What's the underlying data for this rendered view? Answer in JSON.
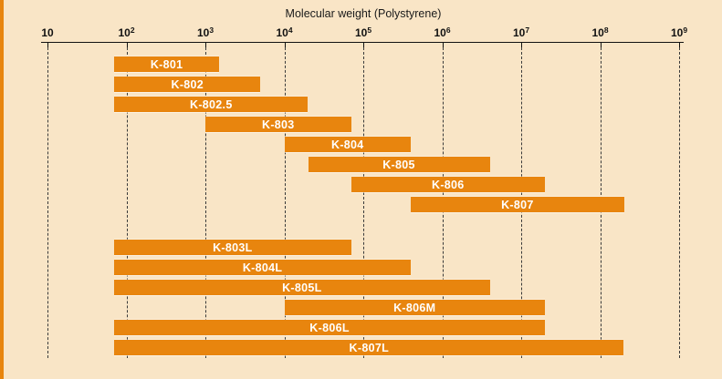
{
  "colors": {
    "background": "#F9E5C6",
    "bar": "#E8850E",
    "bar_label": "#FFFFFF",
    "axis": "#111111",
    "stripe": "#E8850E"
  },
  "chart_data": {
    "type": "bar",
    "orientation": "horizontal-range",
    "title": "Molecular weight (Polystyrene)",
    "x_scale": "log10",
    "x_min": 10,
    "x_max": 1000000000,
    "x_ticks": [
      10,
      100,
      1000,
      10000,
      100000,
      1000000,
      10000000,
      100000000,
      1000000000
    ],
    "x_tick_labels": [
      "10",
      "10^2",
      "10^3",
      "10^4",
      "10^5",
      "10^6",
      "10^7",
      "10^8",
      "10^9"
    ],
    "grid": "vertical-dashed",
    "legend": "none",
    "bars": [
      {
        "name": "K-801",
        "min": 70,
        "max": 1500,
        "group": 0
      },
      {
        "name": "K-802",
        "min": 70,
        "max": 5000,
        "group": 0
      },
      {
        "name": "K-802.5",
        "min": 70,
        "max": 20000,
        "group": 0
      },
      {
        "name": "K-803",
        "min": 1000,
        "max": 70000,
        "group": 0
      },
      {
        "name": "K-804",
        "min": 10000,
        "max": 400000,
        "group": 0
      },
      {
        "name": "K-805",
        "min": 20000,
        "max": 4000000,
        "group": 0
      },
      {
        "name": "K-806",
        "min": 70000,
        "max": 20000000,
        "group": 0
      },
      {
        "name": "K-807",
        "min": 400000,
        "max": 200000000,
        "group": 0
      },
      {
        "name": "K-803L",
        "min": 70,
        "max": 70000,
        "group": 1
      },
      {
        "name": "K-804L",
        "min": 70,
        "max": 400000,
        "group": 1
      },
      {
        "name": "K-805L",
        "min": 70,
        "max": 4000000,
        "group": 1
      },
      {
        "name": "K-806M",
        "min": 10000,
        "max": 20000000,
        "group": 1
      },
      {
        "name": "K-806L",
        "min": 70,
        "max": 20000000,
        "group": 1
      },
      {
        "name": "K-807L",
        "min": 70,
        "max": 200000000,
        "group": 1
      }
    ]
  }
}
